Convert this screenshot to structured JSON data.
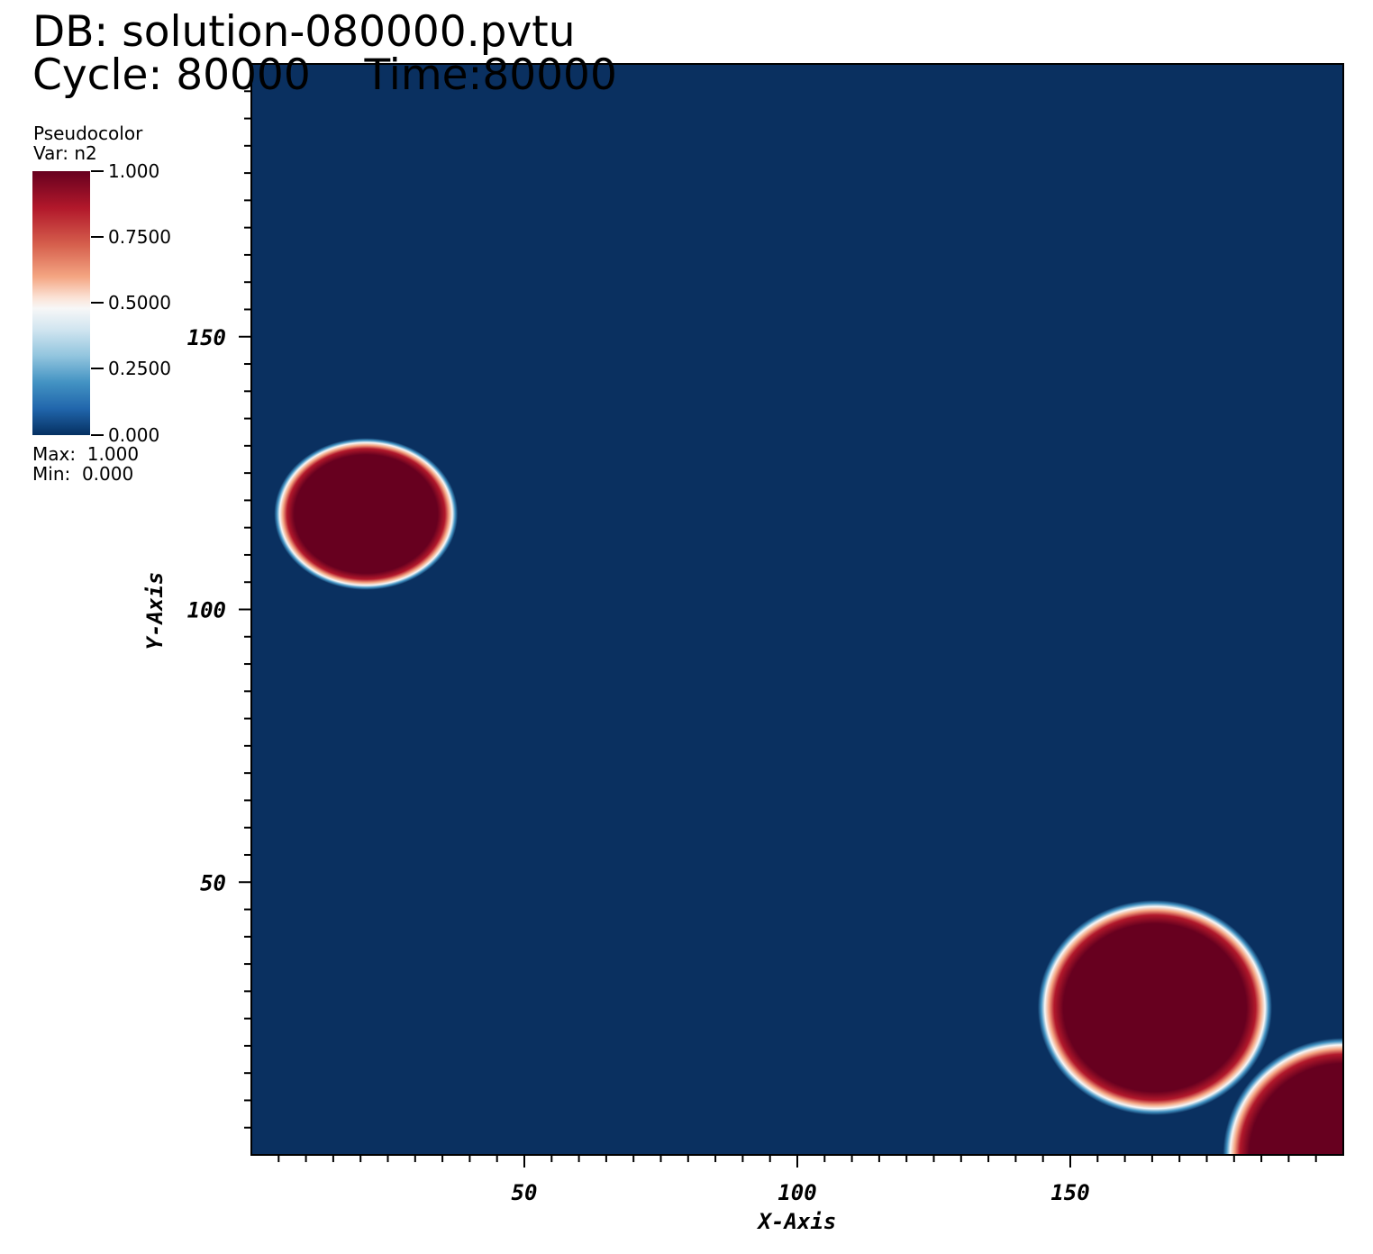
{
  "header": {
    "db_label": "DB: solution-080000.pvtu",
    "cycle_label": "Cycle: 80000    Time:80000"
  },
  "legend": {
    "title": "Pseudocolor",
    "var": "Var: n2",
    "ticks": [
      "1.000",
      "0.7500",
      "0.5000",
      "0.2500",
      "0.000"
    ],
    "max_label": "Max:  1.000",
    "min_label": "Min:  0.000",
    "colormap": [
      "#67001f",
      "#b2182b",
      "#d6604d",
      "#f4a582",
      "#f7f7f7",
      "#92c5de",
      "#4393c3",
      "#2166ac",
      "#053061"
    ]
  },
  "chart_data": {
    "type": "heatmap",
    "variable": "n2",
    "xlabel": "X-Axis",
    "ylabel": "Y-Axis",
    "xlim": [
      0,
      200
    ],
    "ylim": [
      0,
      200
    ],
    "xticks": [
      50,
      100,
      150
    ],
    "yticks": [
      50,
      100,
      150
    ],
    "value_range": [
      0,
      1
    ],
    "background_value": 0,
    "background_color": "#0a3060",
    "blobs": [
      {
        "cx": 21,
        "cy": 117.5,
        "rx": 14.5,
        "ry": 12,
        "value": 1
      },
      {
        "cx": 165.5,
        "cy": 27,
        "rx": 18.5,
        "ry": 17,
        "value": 1
      },
      {
        "cx": 200,
        "cy": 0,
        "rx": 19,
        "ry": 18.5,
        "value": 1
      }
    ]
  }
}
